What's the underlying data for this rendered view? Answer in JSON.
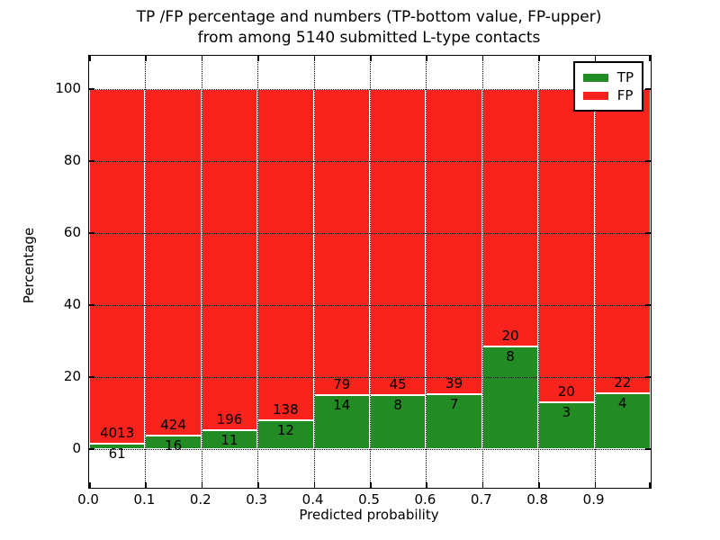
{
  "title_line1": "TP /FP percentage and numbers (TP-bottom value, FP-upper)",
  "title_line2": "from among 5140 submitted L-type contacts",
  "chart_data": {
    "type": "bar",
    "stacked": true,
    "normalized_to_percent": true,
    "title": "TP /FP percentage and numbers (TP-bottom value, FP-upper) from among 5140 submitted L-type contacts",
    "total_contacts": 5140,
    "xlabel": "Predicted probability",
    "ylabel": "Percentage",
    "x_tick_labels": [
      "0.0",
      "0.1",
      "0.2",
      "0.3",
      "0.4",
      "0.5",
      "0.6",
      "0.7",
      "0.8",
      "0.9"
    ],
    "y_ticks": [
      0,
      20,
      40,
      60,
      80,
      100
    ],
    "xlim": [
      0.0,
      1.0
    ],
    "ylim": [
      -10.75,
      109.25
    ],
    "bin_width": 0.1,
    "grid": true,
    "legend_position": "upper right",
    "legend": [
      {
        "label": "TP",
        "color": "#238b23"
      },
      {
        "label": "FP",
        "color": "#f8231d"
      }
    ],
    "bars": [
      {
        "bin": "0.0-0.1",
        "tp": 61,
        "fp": 4013
      },
      {
        "bin": "0.1-0.2",
        "tp": 16,
        "fp": 424
      },
      {
        "bin": "0.2-0.3",
        "tp": 11,
        "fp": 196
      },
      {
        "bin": "0.3-0.4",
        "tp": 12,
        "fp": 138
      },
      {
        "bin": "0.4-0.5",
        "tp": 14,
        "fp": 79
      },
      {
        "bin": "0.5-0.6",
        "tp": 8,
        "fp": 45
      },
      {
        "bin": "0.6-0.7",
        "tp": 7,
        "fp": 39
      },
      {
        "bin": "0.7-0.8",
        "tp": 8,
        "fp": 20
      },
      {
        "bin": "0.8-0.9",
        "tp": 3,
        "fp": 20
      },
      {
        "bin": "0.9-1.0",
        "tp": 4,
        "fp": 22
      }
    ],
    "annotation_rule": "FP count printed above TP/FP boundary, TP count printed below boundary"
  }
}
